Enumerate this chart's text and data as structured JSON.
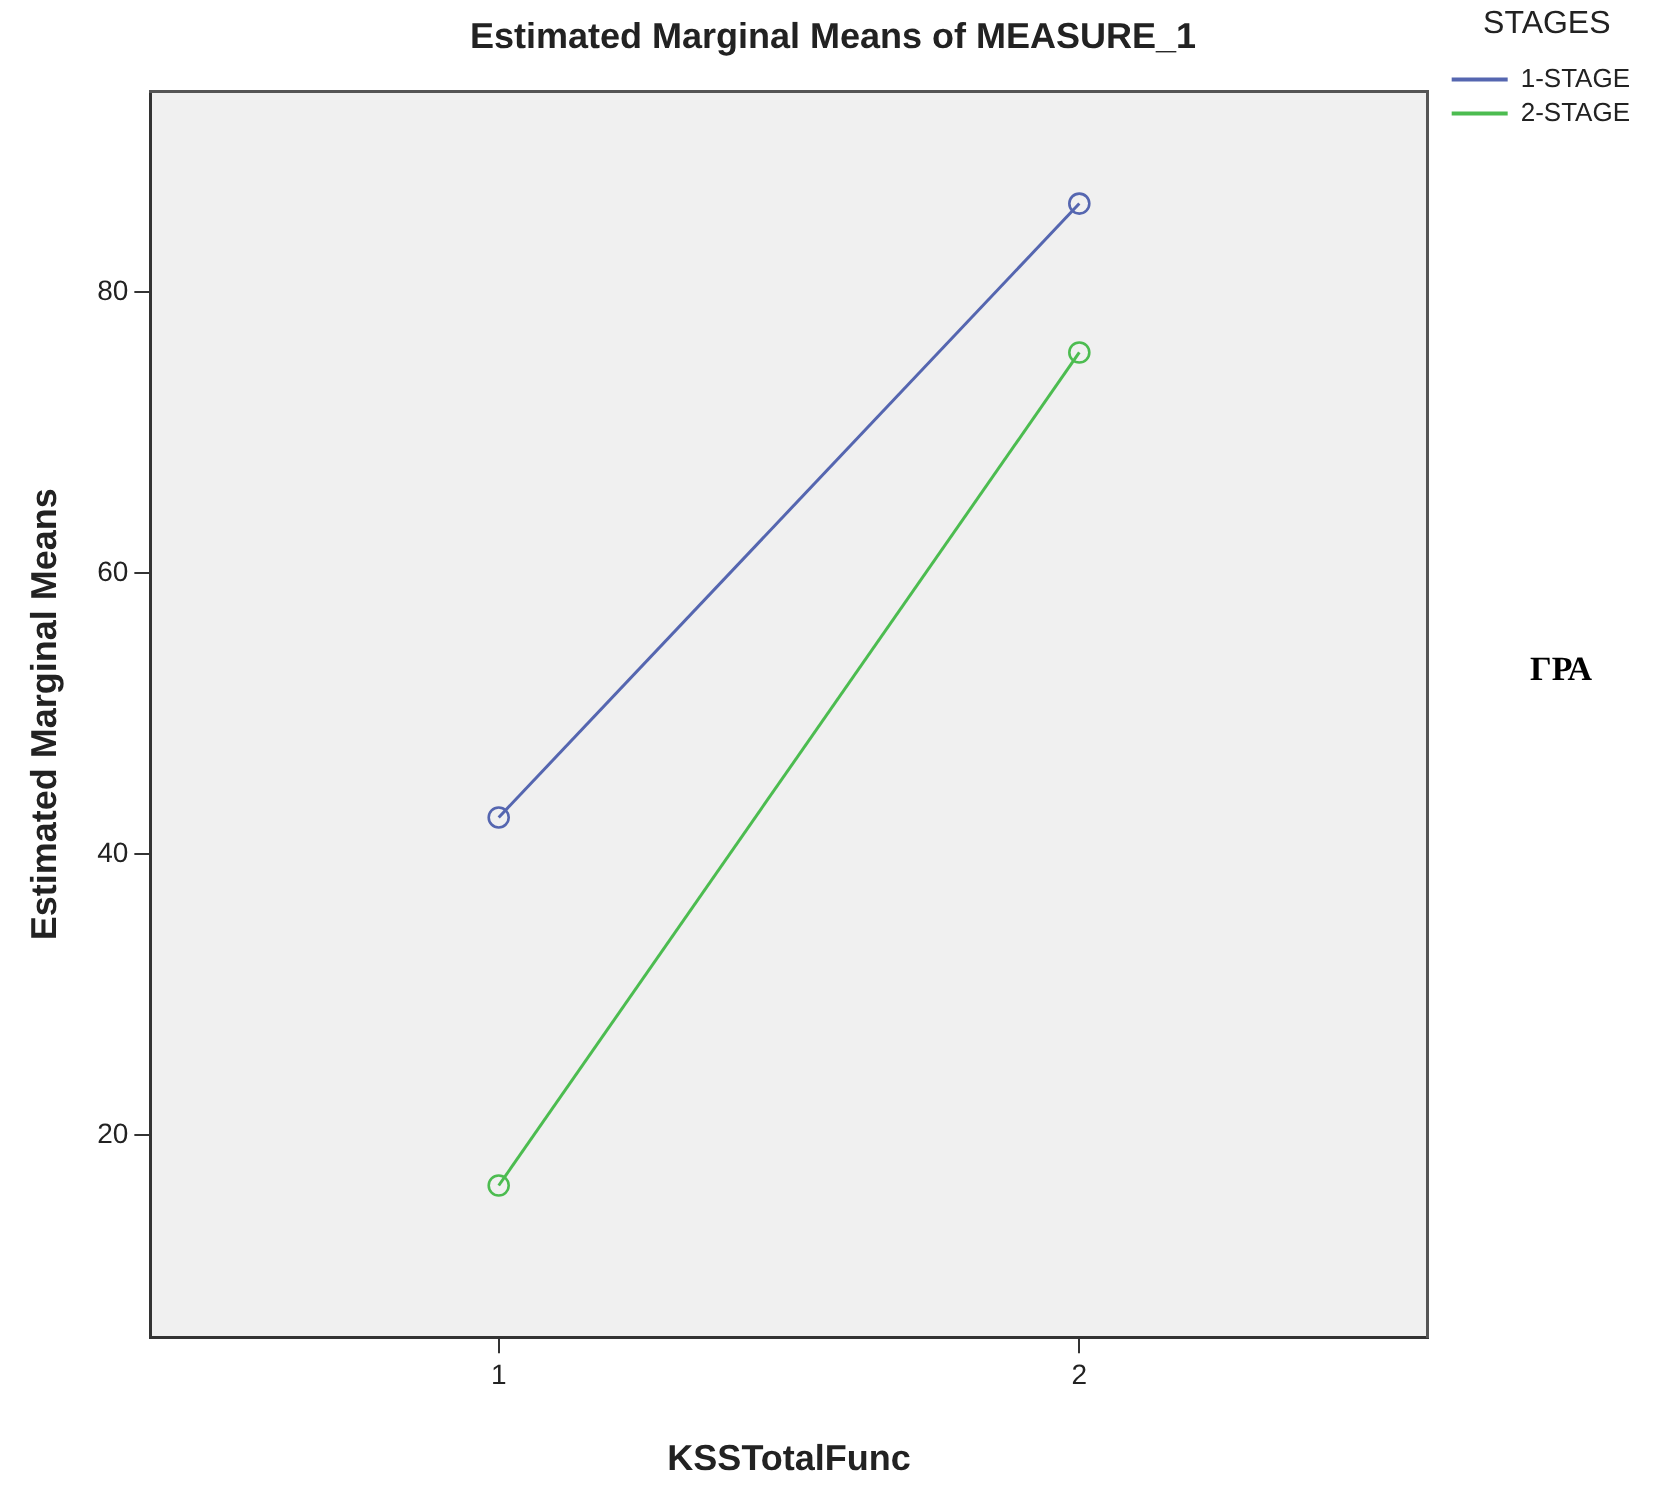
{
  "chart_data": {
    "type": "line",
    "title": "Estimated Marginal Means of MEASURE_1",
    "xlabel": "KSSTotalFunc",
    "ylabel": "Estimated Marginal Means",
    "legend_title": "STAGES",
    "x": [
      1,
      2
    ],
    "series": [
      {
        "name": "1-STAGE",
        "color": "#5566b0",
        "values": [
          42.6,
          86.3
        ]
      },
      {
        "name": "2-STAGE",
        "color": "#4cbc50",
        "values": [
          16.4,
          75.7
        ]
      }
    ],
    "xlim": [
      0.4,
      2.6
    ],
    "xticks": [
      1,
      2
    ],
    "ylim": [
      5.6,
      94.3
    ],
    "yticks": [
      20,
      40,
      60,
      80
    ],
    "grid": false,
    "legend": "right",
    "marker": "circle",
    "line_style": "solid",
    "annotations": [
      "ΓΡΑ"
    ]
  }
}
